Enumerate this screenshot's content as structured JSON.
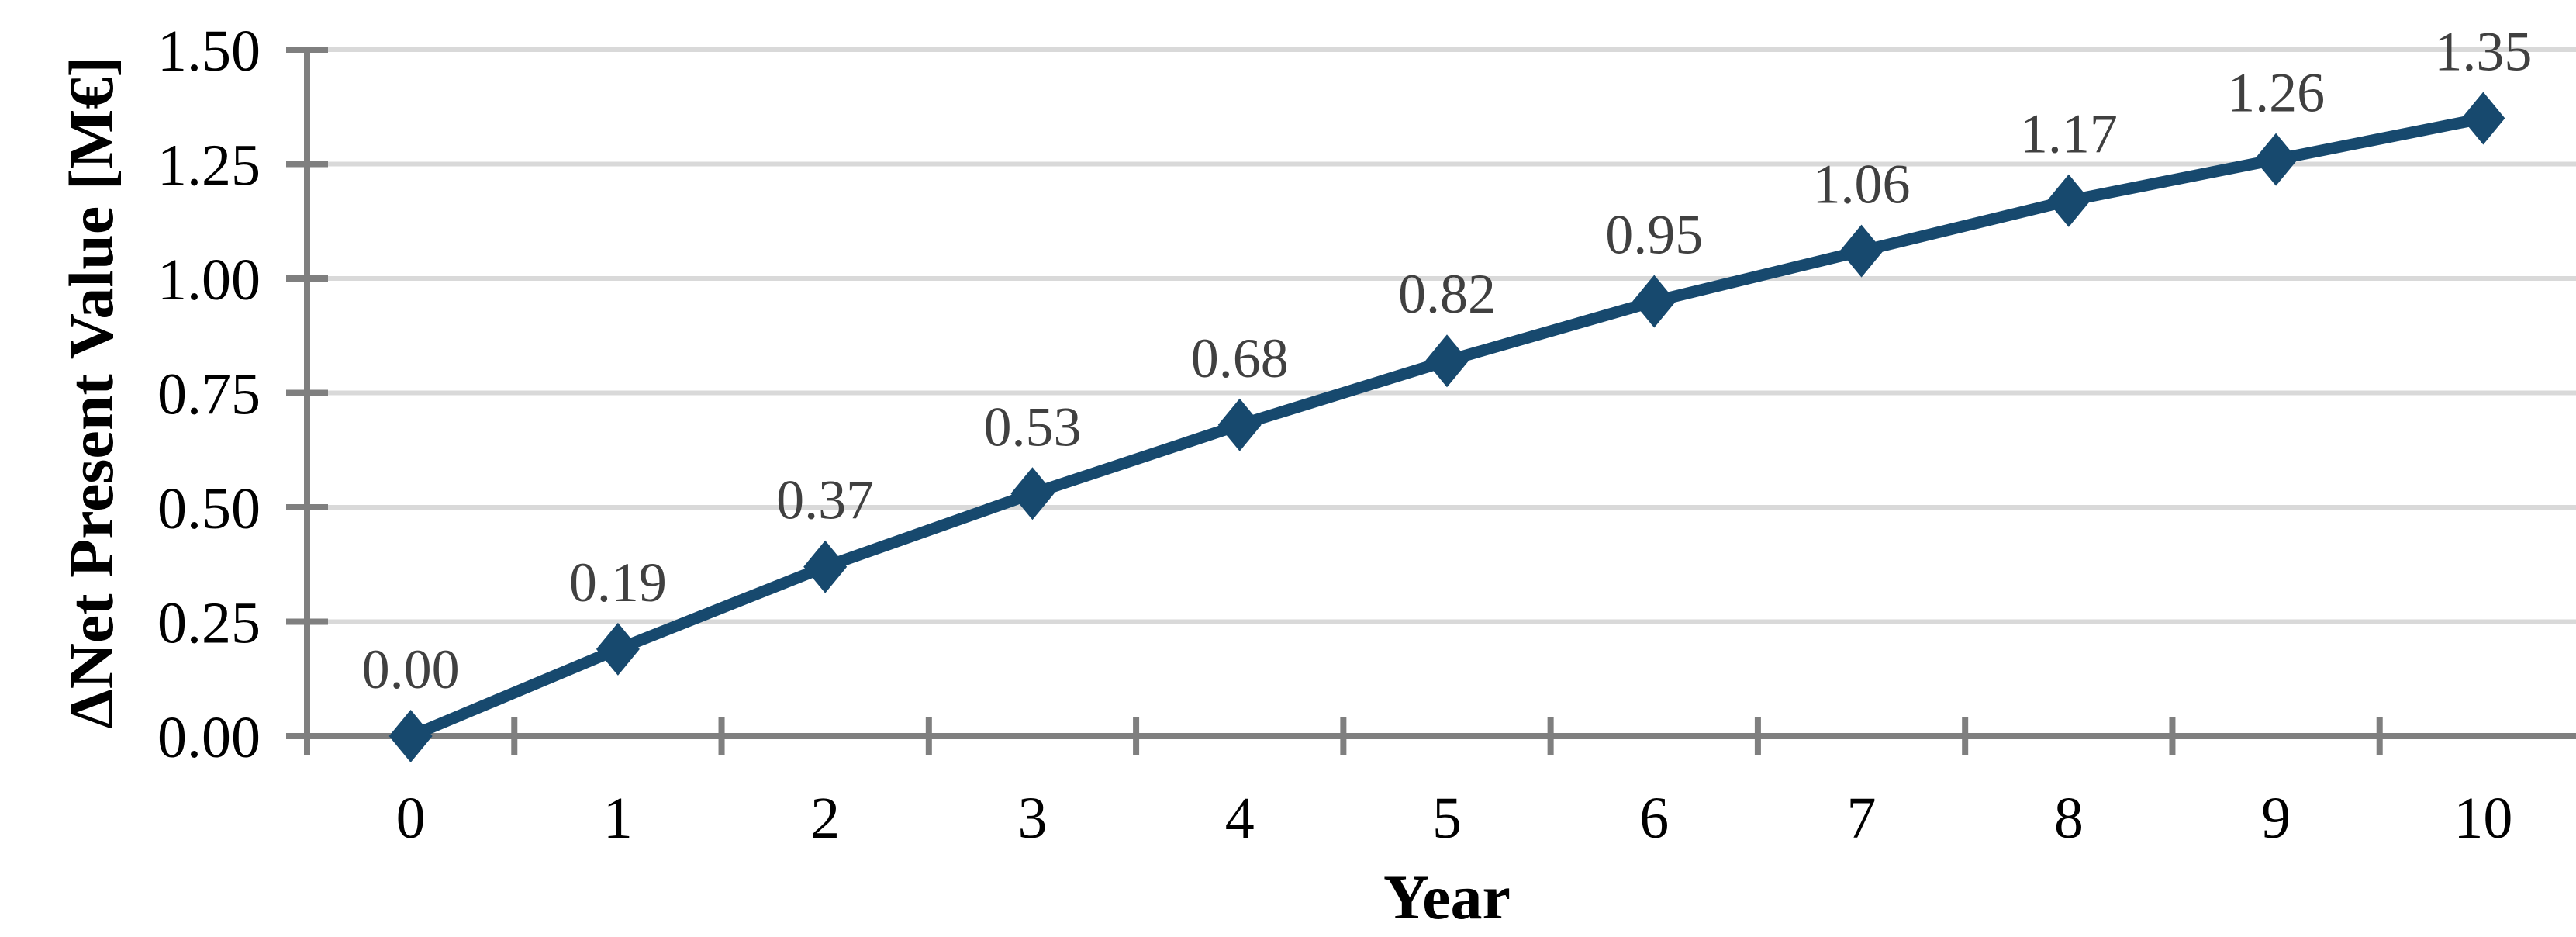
{
  "figure": {
    "background": "#ffffff",
    "x_axis_title": "Year",
    "y_axis_title": "ΔNet Present Value [M€]"
  },
  "chart_data": {
    "type": "line",
    "title": "",
    "xlabel": "Year",
    "ylabel": "ΔNet Present Value [M€]",
    "x": [
      0,
      1,
      2,
      3,
      4,
      5,
      6,
      7,
      8,
      9,
      10
    ],
    "series": [
      {
        "name": "ΔNet Present Value",
        "values": [
          0.0,
          0.19,
          0.37,
          0.53,
          0.68,
          0.82,
          0.95,
          1.06,
          1.17,
          1.26,
          1.35
        ]
      }
    ],
    "data_labels": [
      "0.00",
      "0.19",
      "0.37",
      "0.53",
      "0.68",
      "0.82",
      "0.95",
      "1.06",
      "1.17",
      "1.26",
      "1.35"
    ],
    "x_tick_labels": [
      "0",
      "1",
      "2",
      "3",
      "4",
      "5",
      "6",
      "7",
      "8",
      "9",
      "10"
    ],
    "y_tick_labels": [
      "0.00",
      "0.25",
      "0.50",
      "0.75",
      "1.00",
      "1.25",
      "1.50"
    ],
    "ylim": [
      0,
      1.5
    ],
    "y_step": 0.25,
    "grid": "horizontal",
    "legend": "none",
    "marker": "diamond",
    "colors": {
      "line": "#17496E",
      "marker": "#17496E",
      "gridline": "#D9D9D9",
      "axis": "#7F7F7F",
      "data_label": "#404040",
      "tick_label": "#000000"
    }
  }
}
